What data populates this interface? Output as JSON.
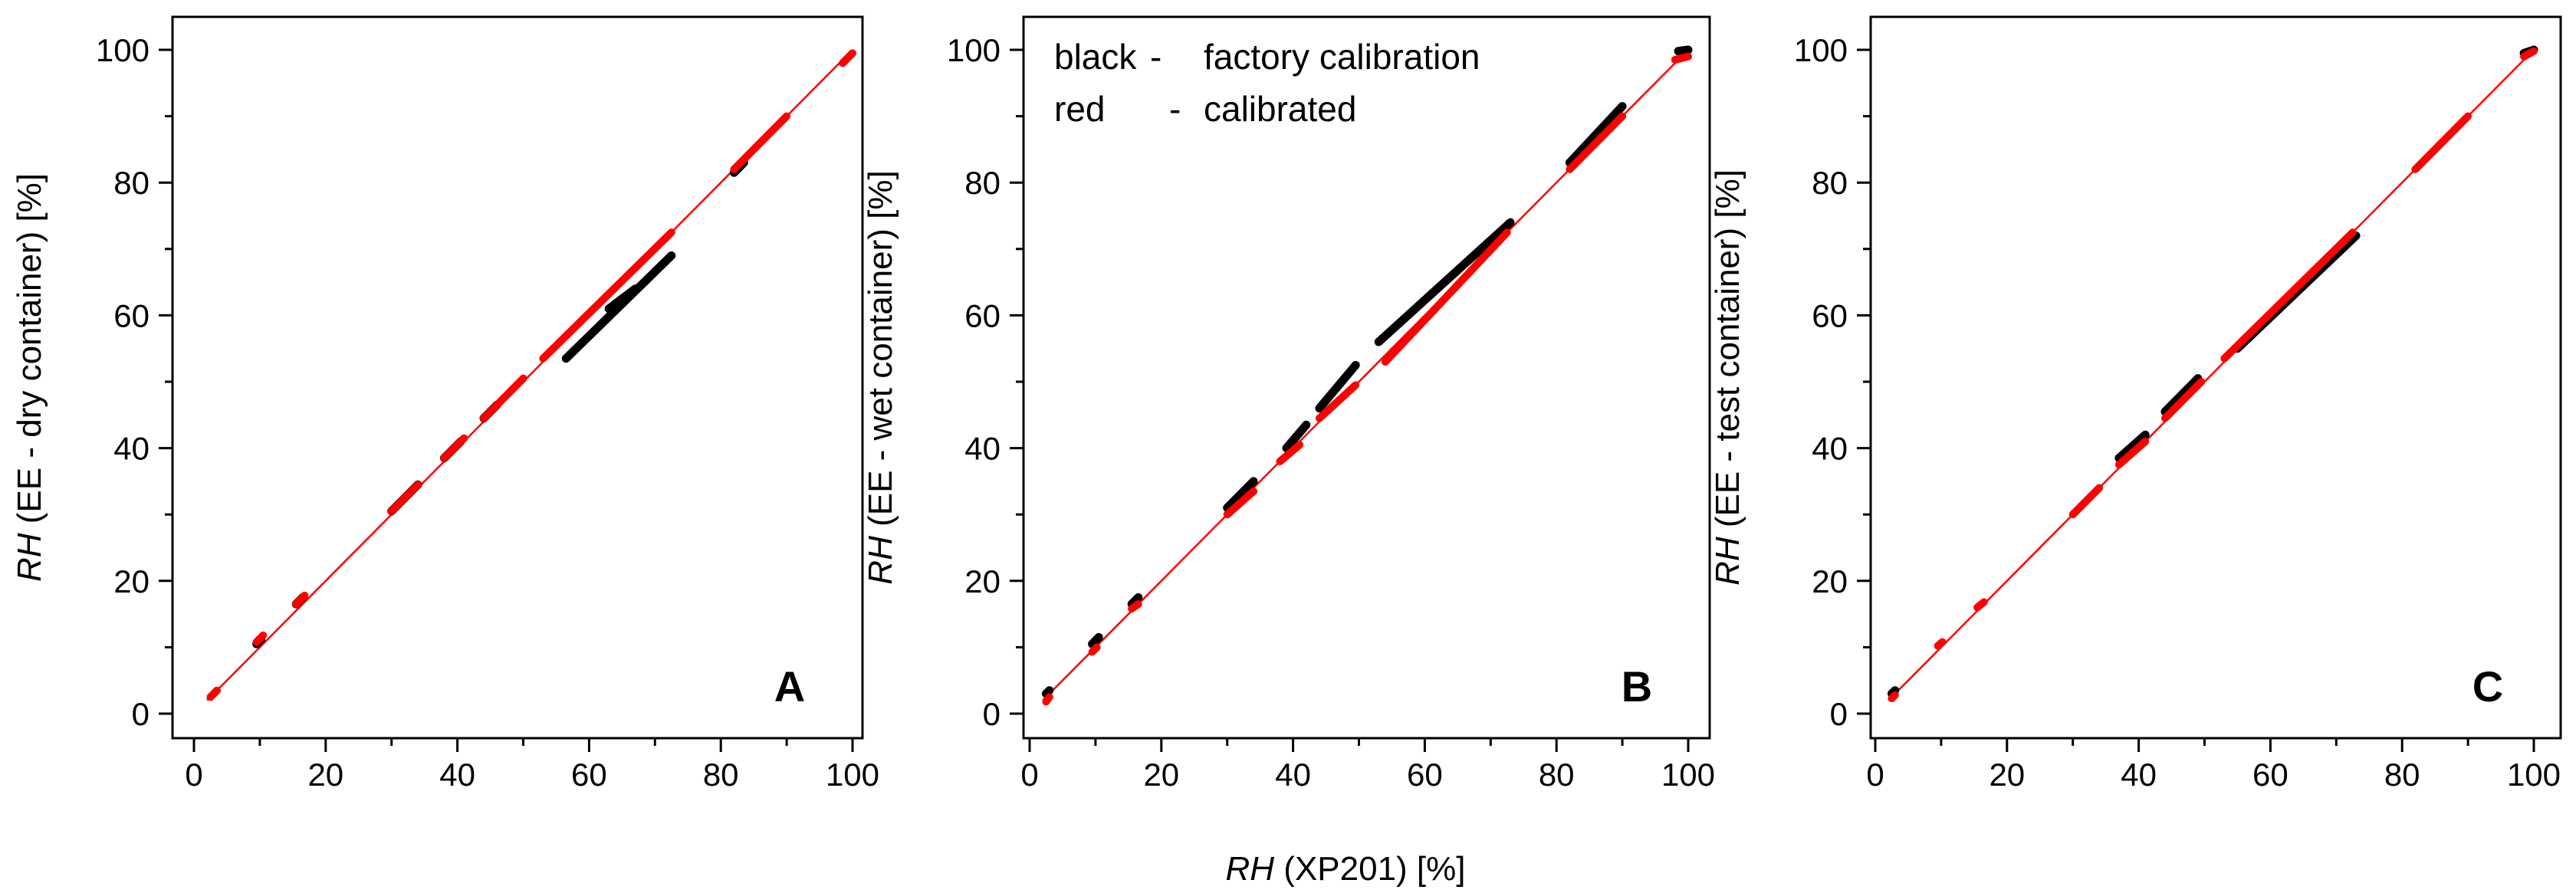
{
  "chart_data": {
    "type": "scatter",
    "shared_xlabel": {
      "prefix": "RH",
      "suffix": " (XP201) [%]"
    },
    "legend": {
      "lines": [
        {
          "key": "black",
          "dash": "-",
          "label": "factory calibration"
        },
        {
          "key": "red",
          "dash": "-",
          "label": "calibrated"
        }
      ]
    },
    "colors": {
      "factory": "#000000",
      "calibrated": "#ff0000",
      "reference": "#ff0000"
    },
    "xlim": [
      0,
      100
    ],
    "ylim": [
      0,
      100
    ],
    "ticks": [
      "0",
      "20",
      "40",
      "60",
      "80",
      "100"
    ],
    "tick_values": [
      0,
      20,
      40,
      60,
      80,
      100
    ],
    "panels": [
      {
        "letter": "A",
        "ylabel": {
          "prefix": "RH",
          "suffix": " (EE - dry container) [%]"
        },
        "reference_line": [
          [
            2,
            2
          ],
          [
            100,
            100
          ]
        ],
        "series": [
          {
            "name": "factory calibration",
            "color": "#000000",
            "segments": [
              [
                [
                  9.5,
                  10.5
                ],
                [
                  10.2,
                  11.2
                ]
              ],
              [
                [
                  15.5,
                  16.5
                ],
                [
                  16.5,
                  17.5
                ]
              ],
              [
                [
                  30,
                  30.5
                ],
                [
                  34,
                  34.5
                ]
              ],
              [
                [
                  38,
                  38.5
                ],
                [
                  40.5,
                  41
                ]
              ],
              [
                [
                  44,
                  44.5
                ],
                [
                  46,
                  46.5
                ]
              ],
              [
                [
                  56.5,
                  53.5
                ],
                [
                  72.5,
                  69
                ]
              ],
              [
                [
                  63,
                  61
                ],
                [
                  67,
                  64
                ]
              ],
              [
                [
                  82,
                  81.5
                ],
                [
                  83.5,
                  83
                ]
              ]
            ]
          },
          {
            "name": "calibrated",
            "color": "#ff0000",
            "segments": [
              [
                [
                  2.5,
                  2.5
                ],
                [
                  3.5,
                  3.5
                ]
              ],
              [
                [
                  9.5,
                  10.8
                ],
                [
                  10.5,
                  11.8
                ]
              ],
              [
                [
                  15.5,
                  16.5
                ],
                [
                  16.8,
                  17.8
                ]
              ],
              [
                [
                  30,
                  30.5
                ],
                [
                  34,
                  34.5
                ]
              ],
              [
                [
                  38,
                  38.5
                ],
                [
                  41,
                  41.5
                ]
              ],
              [
                [
                  44,
                  44.5
                ],
                [
                  50,
                  50.5
                ]
              ],
              [
                [
                  53,
                  53.5
                ],
                [
                  72.5,
                  72.5
                ]
              ],
              [
                [
                  82,
                  82
                ],
                [
                  90,
                  90
                ]
              ],
              [
                [
                  98.5,
                  98
                ],
                [
                  100,
                  99.5
                ]
              ]
            ]
          }
        ]
      },
      {
        "letter": "B",
        "ylabel": {
          "prefix": "RH",
          "suffix": " (EE - wet container) [%]"
        },
        "reference_line": [
          [
            2,
            2
          ],
          [
            100,
            100
          ]
        ],
        "series": [
          {
            "name": "factory calibration",
            "color": "#000000",
            "segments": [
              [
                [
                  2.5,
                  3
                ],
                [
                  3,
                  3.5
                ]
              ],
              [
                [
                  9.5,
                  10.5
                ],
                [
                  10.5,
                  11.5
                ]
              ],
              [
                [
                  15.5,
                  16.5
                ],
                [
                  16.5,
                  17.5
                ]
              ],
              [
                [
                  30,
                  31
                ],
                [
                  34,
                  35
                ]
              ],
              [
                [
                  39,
                  40
                ],
                [
                  42,
                  43.5
                ]
              ],
              [
                [
                  44,
                  46
                ],
                [
                  49.5,
                  52.5
                ]
              ],
              [
                [
                  53,
                  56
                ],
                [
                  73,
                  74
                ]
              ],
              [
                [
                  82,
                  83
                ],
                [
                  90,
                  91.5
                ]
              ],
              [
                [
                  98.5,
                  99.8
                ],
                [
                  100,
                  100
                ]
              ]
            ]
          },
          {
            "name": "calibrated",
            "color": "#ff0000",
            "segments": [
              [
                [
                  2.5,
                  1.8
                ],
                [
                  3,
                  2.5
                ]
              ],
              [
                [
                  9.5,
                  9.3
                ],
                [
                  10.2,
                  10
                ]
              ],
              [
                [
                  15.5,
                  15.8
                ],
                [
                  16.5,
                  16.5
                ]
              ],
              [
                [
                  30,
                  30
                ],
                [
                  34,
                  33.5
                ]
              ],
              [
                [
                  38,
                  38
                ],
                [
                  41,
                  40.5
                ]
              ],
              [
                [
                  44,
                  44.5
                ],
                [
                  49.5,
                  49.5
                ]
              ],
              [
                [
                  54,
                  53
                ],
                [
                  72.5,
                  72.5
                ]
              ],
              [
                [
                  82,
                  82
                ],
                [
                  90,
                  90
                ]
              ],
              [
                [
                  98,
                  98.5
                ],
                [
                  100,
                  99
                ]
              ]
            ]
          }
        ]
      },
      {
        "letter": "C",
        "ylabel": {
          "prefix": "RH",
          "suffix": " (EE - test container) [%]"
        },
        "reference_line": [
          [
            2,
            2
          ],
          [
            100,
            100
          ]
        ],
        "series": [
          {
            "name": "factory calibration",
            "color": "#000000",
            "segments": [
              [
                [
                  2.5,
                  3
                ],
                [
                  3,
                  3.5
                ]
              ],
              [
                [
                  37,
                  38.5
                ],
                [
                  41,
                  42
                ]
              ],
              [
                [
                  44,
                  45.5
                ],
                [
                  49,
                  50.5
                ]
              ],
              [
                [
                  55,
                  55
                ],
                [
                  73,
                  72
                ]
              ],
              [
                [
                  98.5,
                  99.5
                ],
                [
                  100,
                  100
                ]
              ]
            ]
          },
          {
            "name": "calibrated",
            "color": "#ff0000",
            "segments": [
              [
                [
                  2.5,
                  2.3
                ],
                [
                  3,
                  2.8
                ]
              ],
              [
                [
                  9.5,
                  10.2
                ],
                [
                  10.2,
                  10.8
                ]
              ],
              [
                [
                  15.5,
                  16
                ],
                [
                  16.5,
                  16.8
                ]
              ],
              [
                [
                  30,
                  30
                ],
                [
                  34,
                  34
                ]
              ],
              [
                [
                  37,
                  37.5
                ],
                [
                  41,
                  41
                ]
              ],
              [
                [
                  44,
                  44.5
                ],
                [
                  49.5,
                  50
                ]
              ],
              [
                [
                  53,
                  53.5
                ],
                [
                  72.5,
                  72.5
                ]
              ],
              [
                [
                  82,
                  82
                ],
                [
                  90,
                  90
                ]
              ],
              [
                [
                  98.5,
                  99
                ],
                [
                  100,
                  99.8
                ]
              ]
            ]
          }
        ]
      }
    ]
  }
}
